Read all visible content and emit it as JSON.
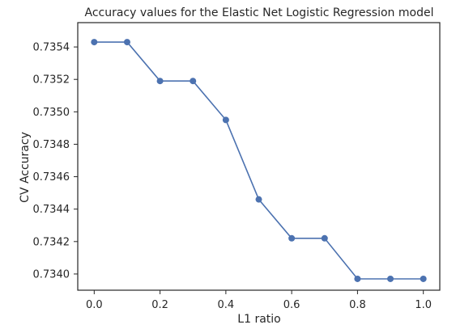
{
  "chart_data": {
    "type": "line",
    "title": "Accuracy values for the Elastic Net Logistic Regression model",
    "xlabel": "L1 ratio",
    "ylabel": "CV Accuracy",
    "xlim": [
      -0.05,
      1.05
    ],
    "ylim": [
      0.7339,
      0.73555
    ],
    "x_ticks": [
      0.0,
      0.2,
      0.4,
      0.6,
      0.8,
      1.0
    ],
    "x_tick_labels": [
      "0.0",
      "0.2",
      "0.4",
      "0.6",
      "0.8",
      "1.0"
    ],
    "y_ticks": [
      0.734,
      0.7342,
      0.7344,
      0.7346,
      0.7348,
      0.735,
      0.7352,
      0.7354
    ],
    "y_tick_labels": [
      "0.7340",
      "0.7342",
      "0.7344",
      "0.7346",
      "0.7348",
      "0.7350",
      "0.7352",
      "0.7354"
    ],
    "grid": false,
    "series": [
      {
        "x": [
          0.0,
          0.1,
          0.2,
          0.3,
          0.4,
          0.5,
          0.6,
          0.7,
          0.8,
          0.9,
          1.0
        ],
        "values": [
          0.73543,
          0.73543,
          0.73519,
          0.73519,
          0.73495,
          0.73446,
          0.73422,
          0.73422,
          0.73397,
          0.73397,
          0.73397
        ],
        "color": "#4c72b0"
      }
    ]
  }
}
